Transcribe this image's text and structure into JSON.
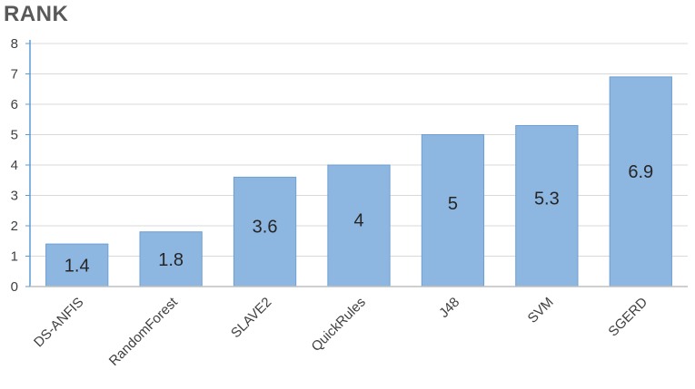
{
  "chart_data": {
    "type": "bar",
    "title": "RANK",
    "categories": [
      "DS-ANFIS",
      "RandomForest",
      "SLAVE2",
      "QuickRules",
      "J48",
      "SVM",
      "SGERD"
    ],
    "values": [
      1.4,
      1.8,
      3.6,
      4,
      5,
      5.3,
      6.9
    ],
    "value_labels": [
      "1.4",
      "1.8",
      "3.6",
      "4",
      "5",
      "5.3",
      "6.9"
    ],
    "y_ticks": [
      "0",
      "1",
      "2",
      "3",
      "4",
      "5",
      "6",
      "7",
      "8"
    ],
    "ylim": [
      0,
      8
    ],
    "grid": true,
    "legend": "none",
    "xlabel": "",
    "ylabel": "",
    "colors": {
      "bar": "#8db6e0",
      "bar_edge": "#6f9fd2",
      "grid": "#d9d9d9",
      "axis": "#5b9bd5"
    }
  }
}
